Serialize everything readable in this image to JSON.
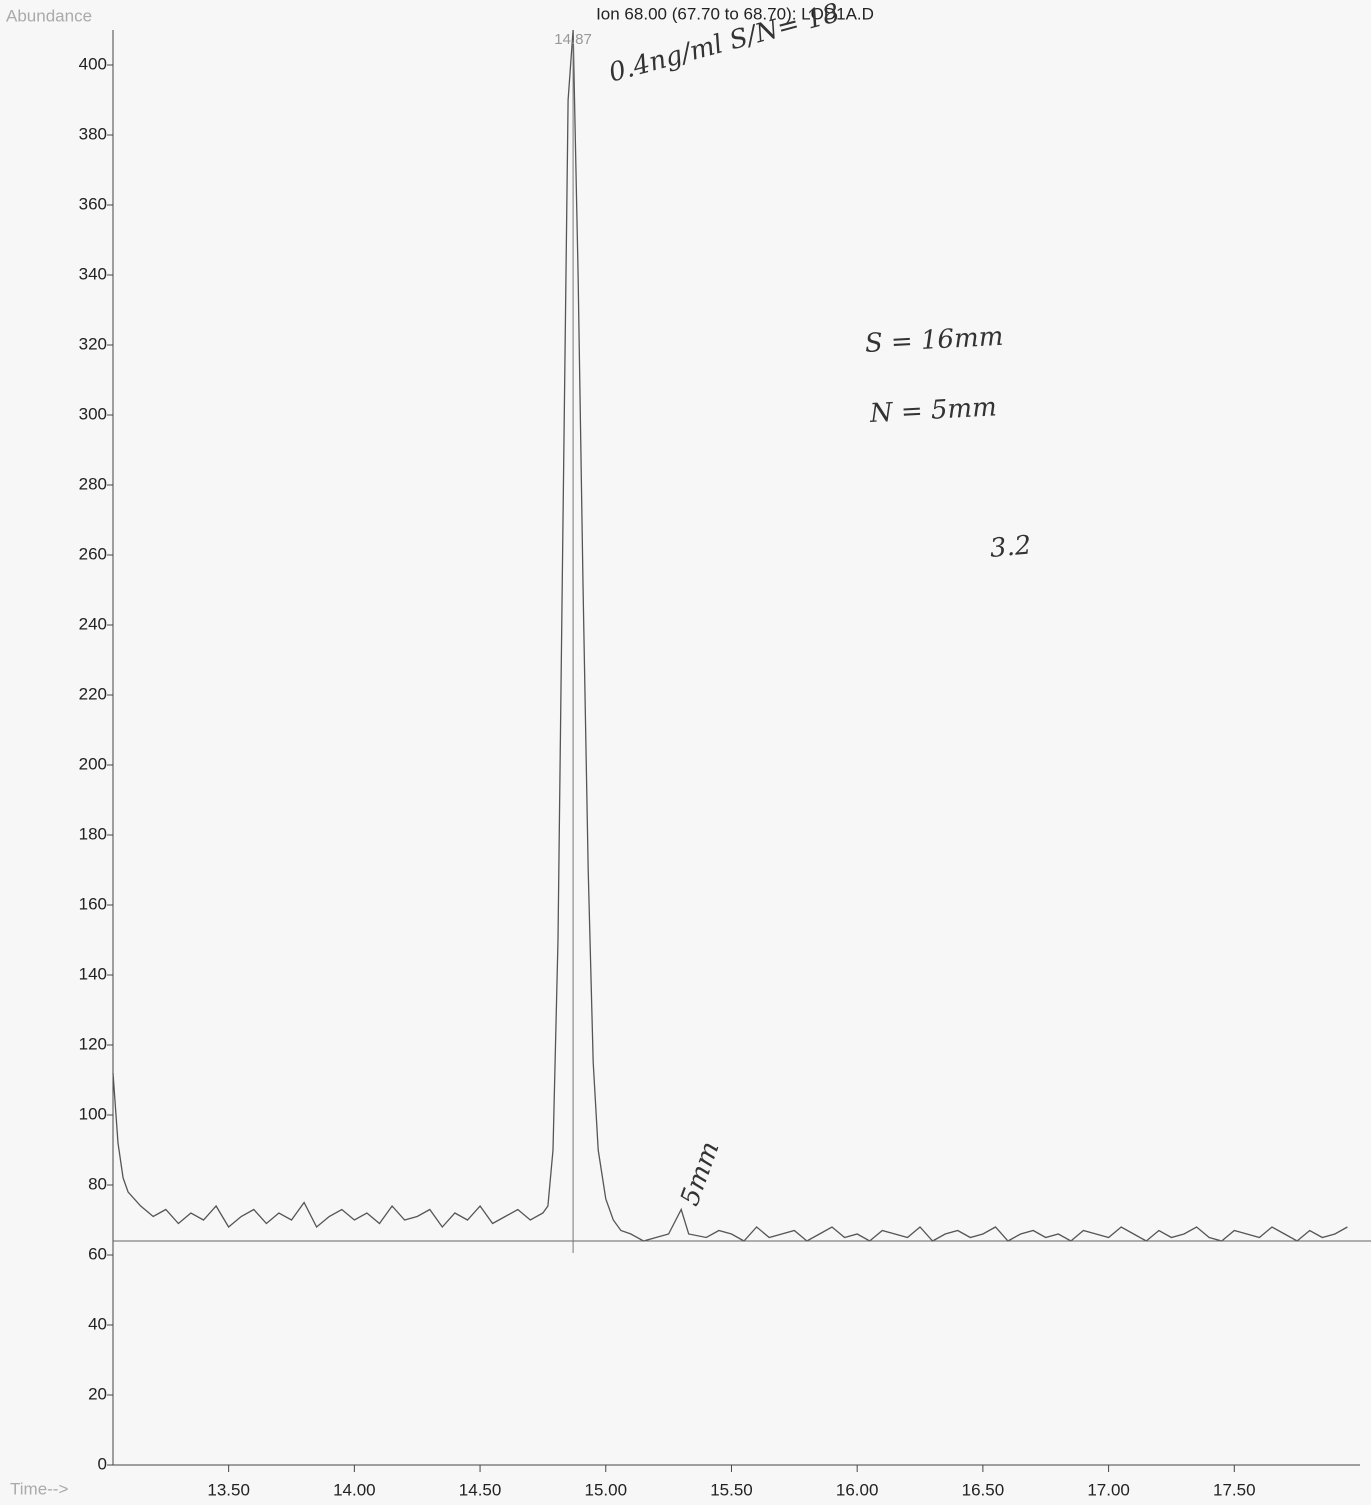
{
  "chart_data": {
    "type": "line",
    "title": "Ion  68.00 (67.70 to 68.70): LOD1A.D",
    "y_label": "Abundance",
    "x_label": "Time-->",
    "peak_time": 14.87,
    "baseline": 64,
    "color": "#555555",
    "annotations": [
      "0.4ng/ml S/N= 18",
      "S = 16mm",
      "N = 5mm",
      "3.2",
      "5mm"
    ],
    "x": [
      13.04,
      13.06,
      13.08,
      13.1,
      13.15,
      13.2,
      13.25,
      13.3,
      13.35,
      13.4,
      13.45,
      13.5,
      13.55,
      13.6,
      13.65,
      13.7,
      13.75,
      13.8,
      13.85,
      13.9,
      13.95,
      14.0,
      14.05,
      14.1,
      14.15,
      14.2,
      14.25,
      14.3,
      14.35,
      14.4,
      14.45,
      14.5,
      14.55,
      14.6,
      14.65,
      14.7,
      14.75,
      14.77,
      14.79,
      14.81,
      14.83,
      14.85,
      14.87,
      14.89,
      14.91,
      14.93,
      14.95,
      14.97,
      15.0,
      15.03,
      15.06,
      15.1,
      15.15,
      15.2,
      15.25,
      15.3,
      15.33,
      15.4,
      15.45,
      15.5,
      15.55,
      15.6,
      15.65,
      15.7,
      15.75,
      15.8,
      15.85,
      15.9,
      15.95,
      16.0,
      16.05,
      16.1,
      16.15,
      16.2,
      16.25,
      16.3,
      16.35,
      16.4,
      16.45,
      16.5,
      16.55,
      16.6,
      16.65,
      16.7,
      16.75,
      16.8,
      16.85,
      16.9,
      16.95,
      17.0,
      17.05,
      17.1,
      17.15,
      17.2,
      17.25,
      17.3,
      17.35,
      17.4,
      17.45,
      17.5,
      17.55,
      17.6,
      17.65,
      17.7,
      17.75,
      17.8,
      17.85,
      17.9,
      17.95
    ],
    "values": [
      112,
      92,
      82,
      78,
      74,
      71,
      73,
      69,
      72,
      70,
      74,
      68,
      71,
      73,
      69,
      72,
      70,
      75,
      68,
      71,
      73,
      70,
      72,
      69,
      74,
      70,
      71,
      73,
      68,
      72,
      70,
      74,
      69,
      71,
      73,
      70,
      72,
      74,
      90,
      150,
      270,
      390,
      410,
      340,
      250,
      170,
      115,
      90,
      76,
      70,
      67,
      66,
      64,
      65,
      66,
      73,
      66,
      65,
      67,
      66,
      64,
      68,
      65,
      66,
      67,
      64,
      66,
      68,
      65,
      66,
      64,
      67,
      66,
      65,
      68,
      64,
      66,
      67,
      65,
      66,
      68,
      64,
      66,
      67,
      65,
      66,
      64,
      67,
      66,
      65,
      68,
      66,
      64,
      67,
      65,
      66,
      68,
      65,
      64,
      67,
      66,
      65,
      68,
      66,
      64,
      67,
      65,
      66,
      68
    ],
    "xlim": [
      13.04,
      18.0
    ],
    "ylim": [
      0,
      410
    ],
    "xticks": [
      {
        "value": 13.5,
        "label": "13.50"
      },
      {
        "value": 14.0,
        "label": "14.00"
      },
      {
        "value": 14.5,
        "label": "14.50"
      },
      {
        "value": 15.0,
        "label": "15.00"
      },
      {
        "value": 15.5,
        "label": "15.50"
      },
      {
        "value": 16.0,
        "label": "16.00"
      },
      {
        "value": 16.5,
        "label": "16.50"
      },
      {
        "value": 17.0,
        "label": "17.00"
      },
      {
        "value": 17.5,
        "label": "17.50"
      }
    ],
    "yticks": [
      0,
      20,
      40,
      60,
      80,
      100,
      120,
      140,
      160,
      180,
      200,
      220,
      240,
      260,
      280,
      300,
      320,
      340,
      360,
      380,
      400
    ],
    "grid": false
  }
}
